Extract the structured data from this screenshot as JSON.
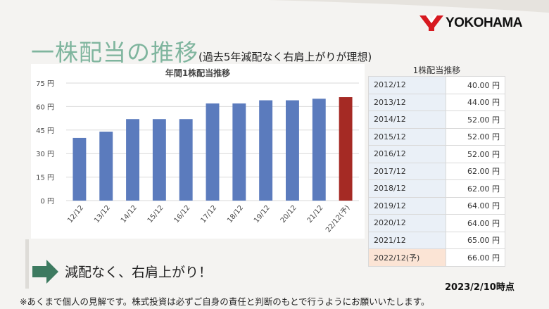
{
  "slide": {
    "logo_text": "YOKOHAMA",
    "title_main": "一株配当の推移",
    "title_sub": "(過去5年減配なく右肩上がりが理想)",
    "conclusion": "減配なく、右肩上がり！",
    "as_of": "2023/2/10時点",
    "footnote": "※あくまで個人の見解です。株式投資は必ずご自身の責任と判断のもとで行うようにお願いいたします。",
    "accent_color": "#7fb59e",
    "logo_color": "#d71920",
    "arrow_color": "#3d7a60"
  },
  "chart_data": {
    "type": "bar",
    "title": "年間1株配当推移",
    "categories": [
      "12/12",
      "13/12",
      "14/12",
      "15/12",
      "16/12",
      "17/12",
      "18/12",
      "19/12",
      "20/12",
      "21/12",
      "22/12(予)"
    ],
    "values": [
      40,
      44,
      52,
      52,
      52,
      62,
      62,
      64,
      64,
      65,
      66
    ],
    "ylim": [
      0,
      75
    ],
    "yticks": [
      "0 円",
      "15 円",
      "30 円",
      "45 円",
      "60 円",
      "75 円"
    ],
    "ytick_values": [
      0,
      15,
      30,
      45,
      60,
      75
    ],
    "xlabel": "",
    "ylabel": "",
    "grid": true,
    "bar_color": "#5b7bbd",
    "highlight_color": "#a52a24",
    "highlight_index": 10
  },
  "table": {
    "title": "1株配当推移",
    "rows": [
      {
        "year": "2012/12",
        "value": "40.00 円"
      },
      {
        "year": "2013/12",
        "value": "44.00 円"
      },
      {
        "year": "2014/12",
        "value": "52.00 円"
      },
      {
        "year": "2015/12",
        "value": "52.00 円"
      },
      {
        "year": "2016/12",
        "value": "52.00 円"
      },
      {
        "year": "2017/12",
        "value": "62.00 円"
      },
      {
        "year": "2018/12",
        "value": "62.00 円"
      },
      {
        "year": "2019/12",
        "value": "64.00 円"
      },
      {
        "year": "2020/12",
        "value": "64.00 円"
      },
      {
        "year": "2021/12",
        "value": "65.00 円"
      },
      {
        "year": "2022/12(予)",
        "value": "66.00 円"
      }
    ]
  }
}
